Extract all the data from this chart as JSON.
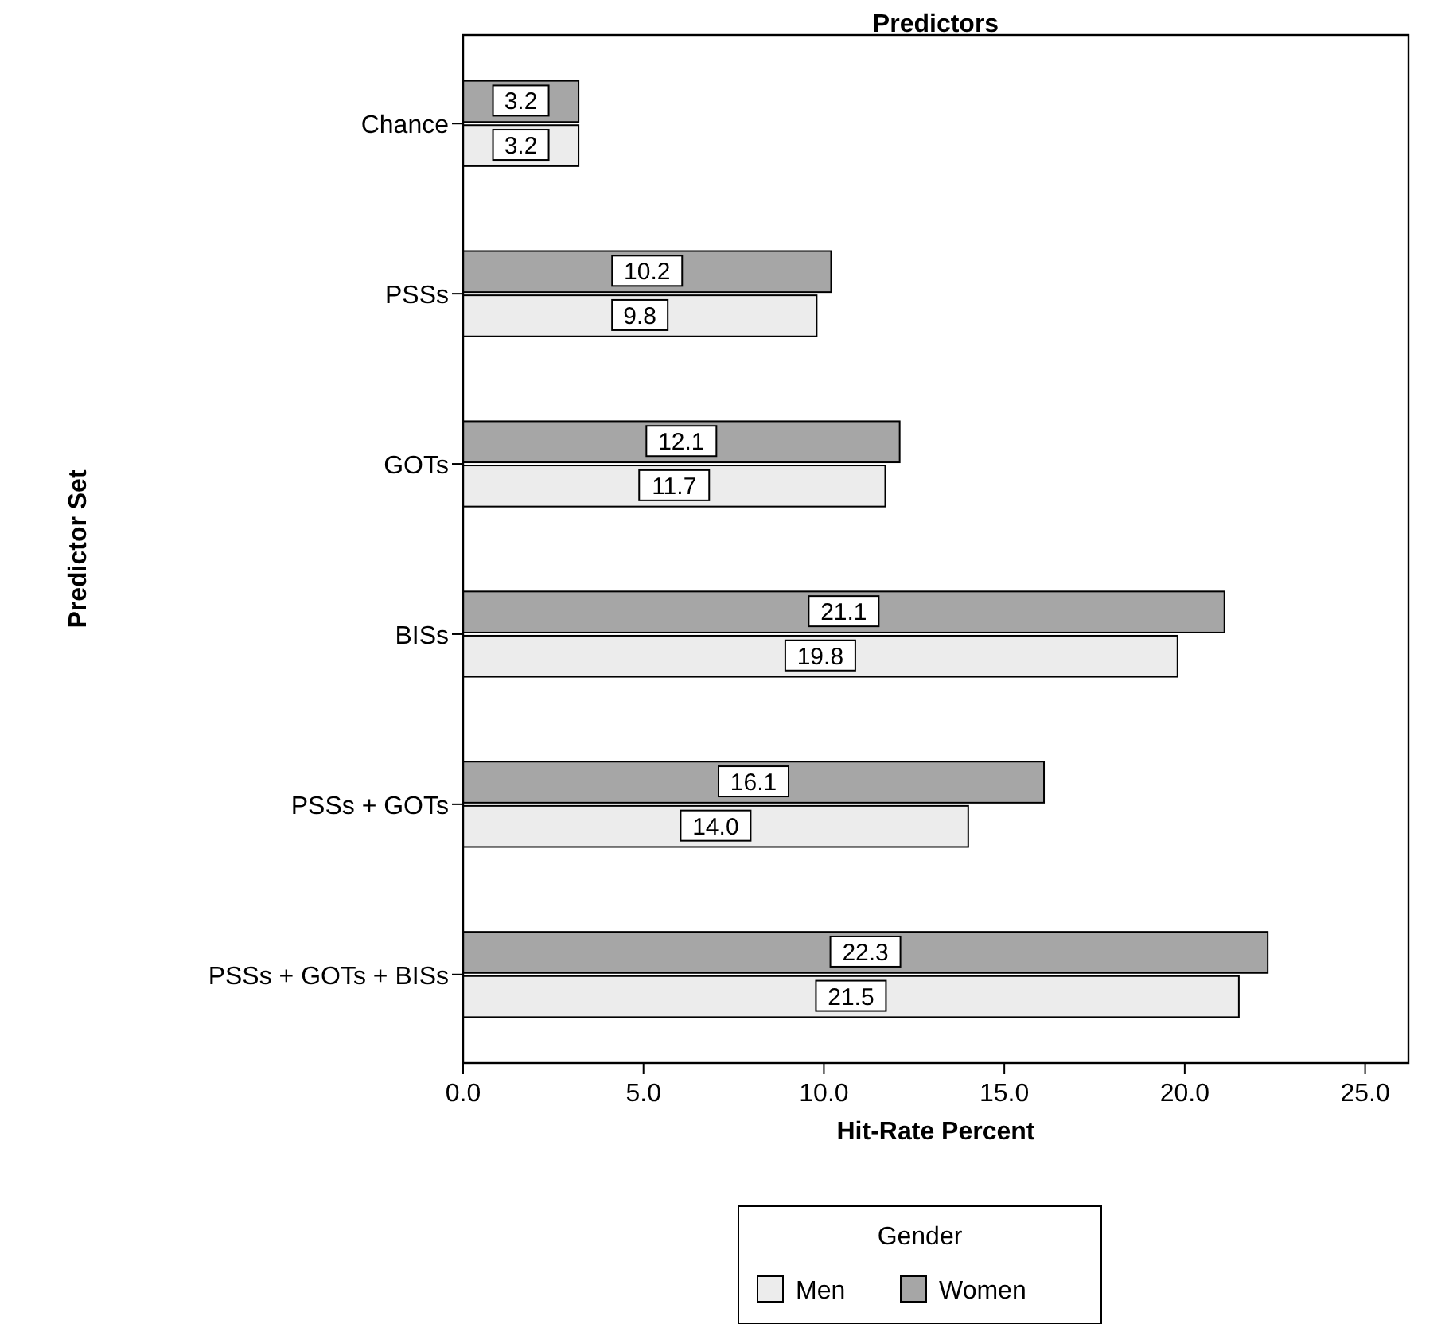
{
  "chart_data": {
    "type": "bar",
    "orientation": "horizontal",
    "title": "Predictors",
    "xlabel": "Hit-Rate Percent",
    "ylabel": "Predictor Set",
    "legend_title": "Gender",
    "categories": [
      "Chance",
      "PSSs",
      "GOTs",
      "BISs",
      "PSSs + GOTs",
      "PSSs + GOTs + BISs"
    ],
    "series": [
      {
        "name": "Men",
        "color": "#ececec",
        "values": [
          3.2,
          9.8,
          11.7,
          19.8,
          14.0,
          21.5
        ],
        "value_labels": [
          "3.2",
          "9.8",
          "11.7",
          "19.8",
          "14.0",
          "21.5"
        ]
      },
      {
        "name": "Women",
        "color": "#a6a6a6",
        "values": [
          3.2,
          10.2,
          12.1,
          21.1,
          16.1,
          22.3
        ],
        "value_labels": [
          "3.2",
          "10.2",
          "12.1",
          "21.1",
          "16.1",
          "22.3"
        ]
      }
    ],
    "xlim": [
      0,
      26.2
    ],
    "xticks": [
      {
        "value": 0,
        "label": "0.0"
      },
      {
        "value": 5,
        "label": "5.0"
      },
      {
        "value": 10,
        "label": "10.0"
      },
      {
        "value": 15,
        "label": "15.0"
      },
      {
        "value": 20,
        "label": "20.0"
      },
      {
        "value": 25,
        "label": "25.0"
      }
    ],
    "grid": false,
    "legend": "bottom",
    "data_labels": true
  }
}
